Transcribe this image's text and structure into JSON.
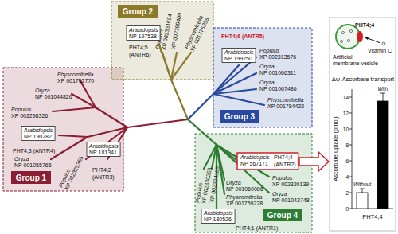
{
  "groups": [
    {
      "label": "Group 1",
      "color": "#8b1e32",
      "leaves": [
        {
          "species": "Physcomitrella",
          "accession": "XP 001762770"
        },
        {
          "species": "Oryza",
          "accession": "NP 001044826"
        },
        {
          "species": "Populus",
          "accession": "XP 002298326"
        },
        {
          "species": "Arabidopsis",
          "accession": "NP 190282",
          "boxed": true,
          "gene": [
            "PHT4;3 (ANTR4)"
          ]
        },
        {
          "species": "Oryza",
          "accession": "NP 001055765"
        },
        {
          "species": "Populus",
          "accession": "XP 002325355"
        },
        {
          "species": "Arabidopsis",
          "accession": "NP 181341",
          "boxed": true,
          "gene": [
            "PHT4;2",
            "(ANTR3)"
          ]
        }
      ]
    },
    {
      "label": "Group 2",
      "color": "#8a7a2a",
      "leaves": [
        {
          "species": "Populus",
          "accession": "XP 002331654"
        },
        {
          "accession": "XP 002299409"
        },
        {
          "species": "Physcomitrella",
          "accession": "XP 001775255"
        },
        {
          "species": "Arabidopsis",
          "accession": "NP 197538",
          "boxed": true,
          "gene": [
            "PHT4;5",
            "(ANTR6)"
          ]
        }
      ]
    },
    {
      "label": "Group 3",
      "color": "#2a4aa0",
      "leaves": [
        {
          "species": "Arabidopsis",
          "accession": "NP 199250",
          "boxed": true,
          "gene": [
            "PHT4;6 (ANTR5)"
          ],
          "color": "#d0202a"
        },
        {
          "species": "Populus",
          "accession": "XP 002313576"
        },
        {
          "species": "Oryza",
          "accession": "NP 001066311"
        },
        {
          "species": "Oryza",
          "accession": "NP 001067486"
        },
        {
          "species": "Physcomitrella",
          "accession": "XP 001784422"
        }
      ]
    },
    {
      "label": "Group 4",
      "color": "#2e7d32",
      "leaves": [
        {
          "species": "Arabidopsis",
          "accession": "NP 567171",
          "highlight": true,
          "gene": [
            "PHT4;4",
            "(ANTR2)"
          ]
        },
        {
          "species": "Populus",
          "accession": "XP 002320139"
        },
        {
          "species": "Oryza",
          "accession": "NP 001060086"
        },
        {
          "species": "Oryza",
          "accession": "NP 001042748"
        },
        {
          "species": "Physcomitrella",
          "accession": "XP 001759228"
        },
        {
          "species": "Arabidopsis",
          "accession": "NP 180526",
          "boxed": true,
          "gene": [
            "PHT4;1 (ANTR1)"
          ]
        },
        {
          "species": "Populus",
          "accession": "XP 002330258"
        },
        {
          "accession": "XP 002324185"
        }
      ]
    }
  ],
  "vesicle": {
    "transporter": "PHT4;4",
    "substrate": "Vitamin C",
    "caption": [
      "Artificial",
      "membrane vesicle"
    ]
  },
  "chart_data": {
    "type": "bar",
    "title": "Δψ-Ascorbate transport",
    "xlabel": "PHT4;4",
    "ylabel": "Ascorbate uptake (pmol)",
    "categories": [
      "Without",
      "With"
    ],
    "values": [
      2,
      13.5
    ],
    "errors": [
      0.5,
      1
    ],
    "colors": [
      "#ffffff",
      "#000000"
    ],
    "ylim": [
      0,
      15
    ],
    "yticks": [
      0,
      2,
      4,
      6,
      8,
      10,
      12,
      14
    ]
  }
}
